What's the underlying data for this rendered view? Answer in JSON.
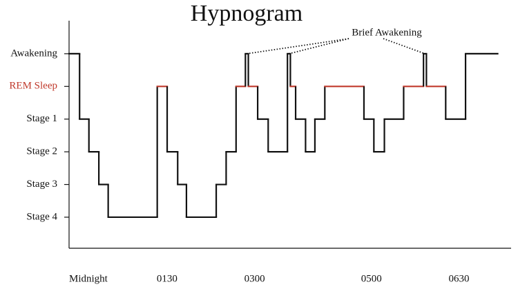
{
  "chart_data": {
    "type": "step",
    "title": "Hypnogram",
    "annotation": "Brief Awakening",
    "x": [
      0,
      0.18,
      0.34,
      0.51,
      0.67,
      1.51,
      1.68,
      1.86,
      2.01,
      2.52,
      2.69,
      2.86,
      3.02,
      3.07,
      3.23,
      3.41,
      3.74,
      3.79,
      3.88,
      4.05,
      4.21,
      4.38,
      5.05,
      5.22,
      5.4,
      5.73,
      6.07,
      6.12,
      6.45,
      6.79,
      7.34
    ],
    "values": [
      5,
      3,
      2,
      1,
      0,
      4,
      2,
      1,
      0,
      1,
      2,
      4,
      5,
      4,
      3,
      2,
      5,
      4,
      3,
      2,
      3,
      4,
      3,
      2,
      3,
      4,
      5,
      4,
      3,
      5,
      5
    ],
    "color": "#111111",
    "highlight_level": 4,
    "highlight_color": "#c0392b",
    "xlim": [
      0,
      7.57
    ],
    "ylim": [
      -0.95,
      6.01
    ],
    "xticks": [
      {
        "value": 0,
        "label": "Midnight"
      },
      {
        "value": 1.5,
        "label": "0130"
      },
      {
        "value": 3,
        "label": "0300"
      },
      {
        "value": 5,
        "label": "0500"
      },
      {
        "value": 6.5,
        "label": "0630"
      }
    ],
    "yticks": [
      {
        "value": 0,
        "label": "Stage 4"
      },
      {
        "value": 1,
        "label": "Stage 3"
      },
      {
        "value": 2,
        "label": "Stage 2"
      },
      {
        "value": 3,
        "label": "Stage 1"
      },
      {
        "value": 4,
        "label": "REM Sleep"
      },
      {
        "value": 5,
        "label": "Awakening"
      }
    ]
  }
}
